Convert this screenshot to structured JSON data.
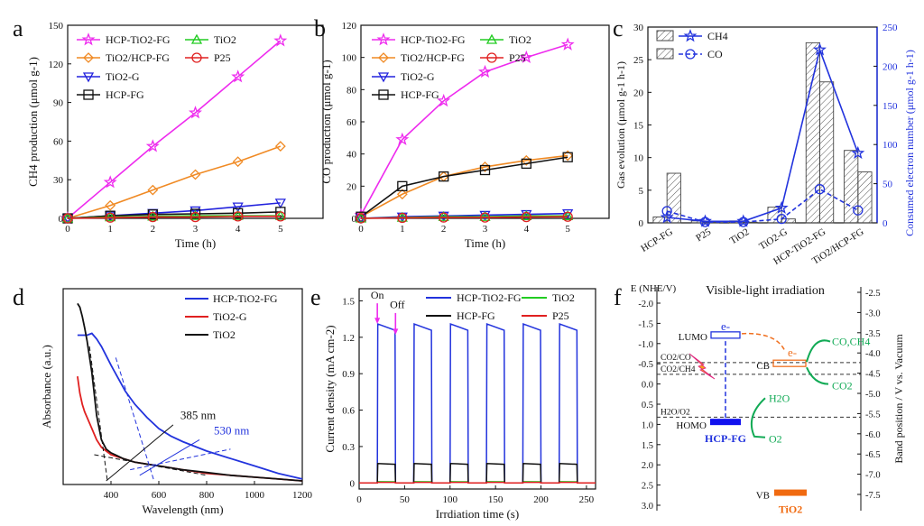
{
  "chart_data": [
    {
      "panel": "a",
      "type": "line",
      "ylabel": "CH4 production (μmol g-1)",
      "xlabel": "Time (h)",
      "xlim": [
        0,
        6
      ],
      "ylim": [
        0,
        150
      ],
      "x_ticks": [
        0,
        1,
        2,
        3,
        4,
        5
      ],
      "y_ticks": [
        0,
        30,
        60,
        90,
        120,
        150
      ],
      "x": [
        0,
        1,
        2,
        3,
        4,
        5
      ],
      "series": [
        {
          "name": "HCP-TiO2-FG",
          "color": "#ee2bee",
          "marker": "star",
          "values": [
            0,
            28,
            56,
            82,
            110,
            138
          ]
        },
        {
          "name": "TiO2/HCP-FG",
          "color": "#f08a24",
          "marker": "diamond",
          "values": [
            0,
            10,
            22,
            34,
            44,
            56
          ]
        },
        {
          "name": "TiO2-G",
          "color": "#2222dd",
          "marker": "triangle-down",
          "values": [
            0,
            2,
            4,
            6,
            9,
            12
          ]
        },
        {
          "name": "HCP-FG",
          "color": "#111111",
          "marker": "square",
          "values": [
            0,
            2,
            3,
            3.5,
            4,
            5
          ]
        },
        {
          "name": "TiO2",
          "color": "#22cc22",
          "marker": "triangle-up",
          "values": [
            0,
            1,
            1.5,
            2,
            2,
            2
          ]
        },
        {
          "name": "P25",
          "color": "#e02020",
          "marker": "circle",
          "values": [
            0,
            0.5,
            1,
            1,
            1.5,
            1.5
          ]
        }
      ]
    },
    {
      "panel": "b",
      "type": "line",
      "ylabel": "CO production (μmol g-1)",
      "xlabel": "Time (h)",
      "xlim": [
        0,
        6
      ],
      "ylim": [
        0,
        120
      ],
      "x_ticks": [
        0,
        1,
        2,
        3,
        4,
        5
      ],
      "y_ticks": [
        0,
        20,
        40,
        60,
        80,
        100,
        120
      ],
      "x": [
        0,
        1,
        2,
        3,
        4,
        5
      ],
      "series": [
        {
          "name": "HCP-TiO2-FG",
          "color": "#ee2bee",
          "marker": "star",
          "values": [
            2,
            49,
            73,
            91,
            100,
            108
          ]
        },
        {
          "name": "TiO2/HCP-FG",
          "color": "#f08a24",
          "marker": "diamond",
          "values": [
            1,
            15,
            26,
            32,
            36,
            39
          ]
        },
        {
          "name": "HCP-FG",
          "color": "#111111",
          "marker": "square",
          "values": [
            1,
            20,
            26,
            30,
            34,
            38
          ]
        },
        {
          "name": "TiO2-G",
          "color": "#2222dd",
          "marker": "triangle-down",
          "values": [
            0,
            1,
            1.5,
            2,
            2.5,
            3
          ]
        },
        {
          "name": "TiO2",
          "color": "#22cc22",
          "marker": "triangle-up",
          "values": [
            0,
            0.5,
            1,
            1,
            1.5,
            1.5
          ]
        },
        {
          "name": "P25",
          "color": "#e02020",
          "marker": "circle",
          "values": [
            0,
            0.3,
            0.5,
            0.5,
            0.8,
            1
          ]
        }
      ]
    },
    {
      "panel": "c",
      "type": "bar",
      "ylabel": "Gas evolution (μmol g-1 h-1)",
      "y2label": "Consumed electron number (μmol g-1 h-1)",
      "categories": [
        "HCP-FG",
        "P25",
        "TiO2",
        "TiO2-G",
        "HCP-TiO2-FG",
        "TiO2/HCP-FG"
      ],
      "ylim": [
        0,
        30
      ],
      "y2lim": [
        0,
        250
      ],
      "y_ticks": [
        0,
        5,
        10,
        15,
        20,
        25,
        30
      ],
      "y2_ticks": [
        0,
        50,
        100,
        150,
        200,
        250
      ],
      "series": [
        {
          "name": "CH4",
          "values": [
            0.9,
            0.3,
            0.3,
            2.4,
            27.6,
            11.1
          ]
        },
        {
          "name": "CO",
          "values": [
            7.6,
            0.1,
            0.1,
            0.6,
            21.6,
            7.8
          ]
        }
      ],
      "electron_series": [
        {
          "name": "CH4",
          "color": "#2233dd",
          "values": [
            7,
            2,
            2,
            19,
            221,
            89
          ]
        },
        {
          "name": "CO",
          "color": "#2233dd",
          "dashed": true,
          "values": [
            15,
            1,
            1,
            5,
            43,
            16
          ]
        }
      ]
    },
    {
      "panel": "d",
      "type": "line",
      "ylabel": "Absorbance (a.u.)",
      "xlabel": "Wavelength (nm)",
      "xlim": [
        200,
        1200
      ],
      "x_ticks": [
        400,
        600,
        800,
        1000,
        1200
      ],
      "annotations": [
        "385 nm",
        "530 nm"
      ],
      "series": [
        {
          "name": "HCP-TiO2-FG",
          "color": "#2233dd",
          "x": [
            260,
            280,
            300,
            320,
            340,
            360,
            380,
            400,
            430,
            460,
            500,
            550,
            600,
            650,
            700,
            800,
            900,
            1000,
            1100,
            1200
          ],
          "values": [
            0.78,
            0.78,
            0.78,
            0.79,
            0.76,
            0.72,
            0.67,
            0.62,
            0.55,
            0.48,
            0.41,
            0.34,
            0.28,
            0.24,
            0.21,
            0.16,
            0.12,
            0.08,
            0.04,
            0.01
          ]
        },
        {
          "name": "TiO2-G",
          "color": "#e02020",
          "x": [
            260,
            270,
            280,
            290,
            300,
            320,
            340,
            360,
            380,
            400,
            450,
            500,
            550,
            600,
            700,
            800,
            900,
            1000,
            1100,
            1200
          ],
          "values": [
            0.56,
            0.47,
            0.41,
            0.37,
            0.34,
            0.28,
            0.22,
            0.18,
            0.16,
            0.14,
            0.12,
            0.1,
            0.09,
            0.08,
            0.06,
            0.04,
            0.03,
            0.02,
            0.01,
            0.0
          ]
        },
        {
          "name": "TiO2",
          "color": "#111111",
          "x": [
            260,
            270,
            280,
            290,
            300,
            320,
            340,
            360,
            380,
            400,
            450,
            500,
            550,
            600,
            700,
            800,
            900,
            1000,
            1100,
            1200
          ],
          "values": [
            0.95,
            0.93,
            0.88,
            0.82,
            0.75,
            0.58,
            0.35,
            0.22,
            0.17,
            0.15,
            0.12,
            0.1,
            0.09,
            0.08,
            0.06,
            0.045,
            0.03,
            0.02,
            0.01,
            0.0
          ]
        }
      ]
    },
    {
      "panel": "e",
      "type": "line",
      "ylabel": "Current density (mA cm-2)",
      "xlabel": "Irrdiation time (s)",
      "xlim": [
        0,
        260
      ],
      "ylim": [
        -0.05,
        1.6
      ],
      "x_ticks": [
        0,
        50,
        100,
        150,
        200,
        250
      ],
      "y_ticks": [
        0.0,
        0.3,
        0.6,
        0.9,
        1.2,
        1.5
      ],
      "light_on": [
        20,
        60,
        100,
        140,
        180,
        220
      ],
      "light_off": [
        40,
        80,
        120,
        160,
        200,
        240
      ],
      "annotations": [
        "On",
        "Off"
      ],
      "series": [
        {
          "name": "HCP-TiO2-FG",
          "color": "#2233dd",
          "on_value": 1.31,
          "off_value": 0.0
        },
        {
          "name": "TiO2",
          "color": "#22cc22",
          "on_value": 0.01,
          "off_value": 0.0
        },
        {
          "name": "HCP-FG",
          "color": "#111111",
          "on_value": 0.16,
          "off_value": 0.0
        },
        {
          "name": "P25",
          "color": "#e02020",
          "on_value": 0.005,
          "off_value": 0.0
        }
      ]
    },
    {
      "panel": "f",
      "type": "diagram",
      "title": "Visible-light irradiation",
      "ylabel": "E (NHE/V)",
      "y2label": "Band position / V vs. Vacuum",
      "y_ticks": [
        -2.0,
        -1.5,
        -1.0,
        -0.5,
        0.0,
        0.5,
        1.0,
        1.5,
        2.0,
        2.5,
        3.0
      ],
      "y2_ticks": [
        -2.5,
        -3.0,
        -3.5,
        -4.0,
        -4.5,
        -5.0,
        -5.5,
        -6.0,
        -6.5,
        -7.0,
        -7.5
      ],
      "levels": [
        {
          "label": "LUMO",
          "value": -1.2
        },
        {
          "label": "HOMO",
          "value": 0.95
        },
        {
          "label": "CB",
          "value": -0.5
        },
        {
          "label": "VB",
          "value": 2.7
        }
      ],
      "redox": [
        {
          "label": "CO2/CO",
          "value": -0.53
        },
        {
          "label": "CO2/CH4",
          "value": -0.24
        },
        {
          "label": "H2O/O2",
          "value": 0.82
        }
      ],
      "materials": [
        "HCP-FG",
        "TiO2"
      ],
      "products": [
        "CO,CH4",
        "CO2",
        "H2O",
        "O2"
      ],
      "electron_label": "e-"
    }
  ],
  "panel_labels": [
    "a",
    "b",
    "c",
    "d",
    "e",
    "f"
  ]
}
